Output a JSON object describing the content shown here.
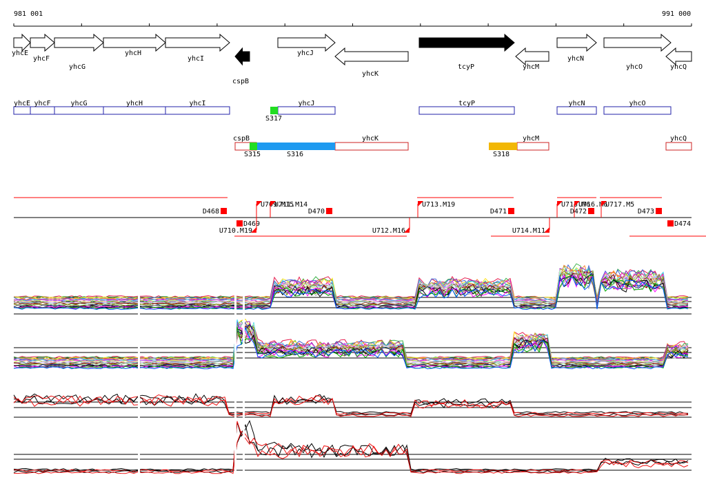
{
  "coords": {
    "start": "981 001",
    "end": "991 000"
  },
  "genes": [
    {
      "name": "yhcE",
      "strand": "+",
      "fill": "none"
    },
    {
      "name": "yhcF",
      "strand": "+",
      "fill": "none"
    },
    {
      "name": "yhcG",
      "strand": "+",
      "fill": "none"
    },
    {
      "name": "yhcH",
      "strand": "+",
      "fill": "none"
    },
    {
      "name": "yhcI",
      "strand": "+",
      "fill": "none"
    },
    {
      "name": "cspB",
      "strand": "-",
      "fill": "#000000"
    },
    {
      "name": "yhcJ",
      "strand": "+",
      "fill": "none"
    },
    {
      "name": "yhcK",
      "strand": "-",
      "fill": "none"
    },
    {
      "name": "tcyP",
      "strand": "+",
      "fill": "#000000"
    },
    {
      "name": "yhcM",
      "strand": "-",
      "fill": "none"
    },
    {
      "name": "yhcN",
      "strand": "+",
      "fill": "none"
    },
    {
      "name": "yhcO",
      "strand": "+",
      "fill": "none"
    },
    {
      "name": "yhcQ",
      "strand": "-",
      "fill": "none"
    }
  ],
  "transcripts_forward": [
    "yhcE",
    "yhcF",
    "yhcG",
    "yhcH",
    "yhcI",
    "yhcJ",
    "tcyP",
    "yhcN",
    "yhcO"
  ],
  "transcripts_reverse": [
    "cspB",
    "yhcK",
    "yhcM",
    "yhcQ"
  ],
  "segments": [
    {
      "label": "S317",
      "color": "#22dd22"
    },
    {
      "label": "S315",
      "color": "#22dd22"
    },
    {
      "label": "S316",
      "color": "#1e9af0"
    },
    {
      "label": "S318",
      "color": "#f2b705"
    }
  ],
  "boundary_labels": [
    "D468",
    "U709.M15",
    "U711.M14",
    "D470",
    "U713.M19",
    "D471",
    "U715.M6",
    "U716.M6",
    "D472",
    "U717.M5",
    "D473",
    "D469",
    "U710.M19",
    "U712.M16",
    "U714.M11",
    "D474"
  ],
  "colors": {
    "forward_box": "#2222aa",
    "reverse_box": "#cc2222",
    "marker": "#ff0000",
    "trace_red": "#ee1111",
    "trace_black": "#000000"
  }
}
